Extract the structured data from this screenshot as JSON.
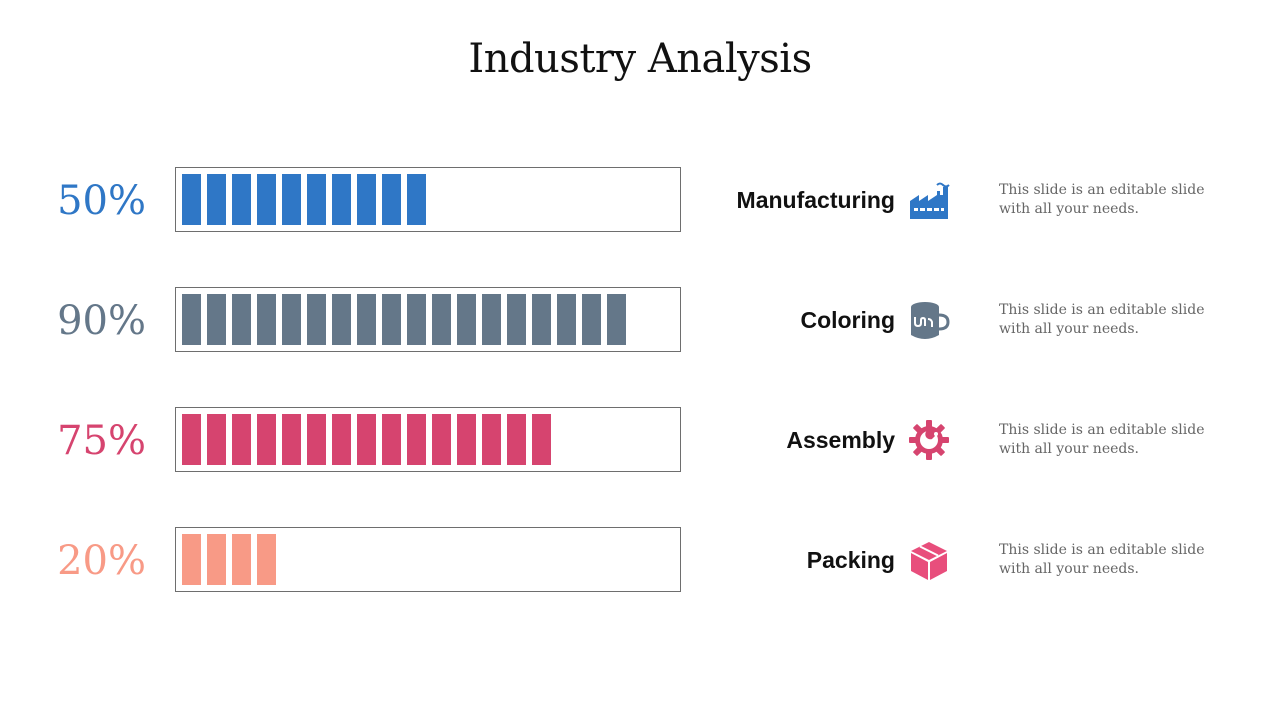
{
  "slide": {
    "title": "Industry Analysis"
  },
  "rows": [
    {
      "percent_label": "50%",
      "category": "Manufacturing",
      "icon": "factory-icon",
      "color": "#2f77c6",
      "filled_segments": 10,
      "percent_value": 50,
      "description": "This slide is an editable slide with all your needs."
    },
    {
      "percent_label": "90%",
      "category": "Coloring",
      "icon": "paint-bucket-icon",
      "color": "#647789",
      "filled_segments": 18,
      "percent_value": 90,
      "description": "This slide is an editable slide with all your needs."
    },
    {
      "percent_label": "75%",
      "category": "Assembly",
      "icon": "wrench-gear-icon",
      "color": "#d6446f",
      "filled_segments": 15,
      "percent_value": 75,
      "description": "This slide is an editable slide with all your needs."
    },
    {
      "percent_label": "20%",
      "category": "Packing",
      "icon": "box-icon",
      "color": "#f89a86",
      "filled_segments": 4,
      "percent_value": 20,
      "description": "This slide is an editable slide with all your needs."
    }
  ],
  "icon_colors": {
    "factory-icon": "#2f77c6",
    "paint-bucket-icon": "#647789",
    "wrench-gear-icon": "#d6446f",
    "box-icon": "#e84e7c"
  }
}
